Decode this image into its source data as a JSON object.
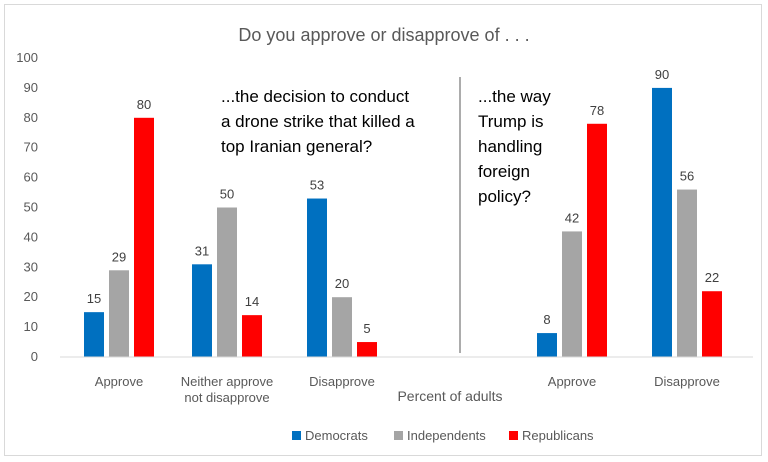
{
  "chart_data": {
    "type": "bar",
    "title": "Do you approve or disapprove of . . .",
    "xlabel": "Percent of adults",
    "ylabel": "",
    "ylim": [
      0,
      100
    ],
    "yticks": [
      "0",
      "10",
      "20",
      "30",
      "40",
      "50",
      "60",
      "70",
      "80",
      "90",
      "100"
    ],
    "grid": false,
    "legend_position": "bottom",
    "categories": [
      "Approve",
      "Neither approve\nnot disapprove",
      "Disapprove",
      "Approve",
      "Disapprove"
    ],
    "panels": [
      {
        "annotation": "...the decision to conduct a drone strike that killed a top Iranian general?",
        "annotation_lines": [
          "...the decision to conduct",
          "a drone strike that killed a",
          "top Iranian general?"
        ],
        "category_indices": [
          0,
          1,
          2
        ]
      },
      {
        "annotation": "...the way Trump is handling foreign policy?",
        "annotation_lines": [
          "...the way",
          "Trump is",
          "handling",
          "foreign",
          "policy?"
        ],
        "category_indices": [
          3,
          4
        ]
      }
    ],
    "series": [
      {
        "name": "Democrats",
        "color": "#0070c0",
        "values": [
          15,
          31,
          53,
          8,
          90
        ]
      },
      {
        "name": "Independents",
        "color": "#a5a5a5",
        "values": [
          29,
          50,
          20,
          42,
          56
        ]
      },
      {
        "name": "Republicans",
        "color": "#ff0000",
        "values": [
          80,
          14,
          5,
          78,
          22
        ]
      }
    ]
  }
}
